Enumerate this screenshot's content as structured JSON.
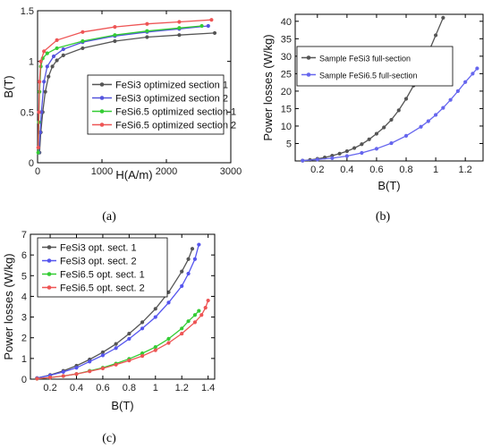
{
  "captions": [
    "(a)",
    "(b)",
    "(c)"
  ],
  "chart_data": [
    {
      "type": "line",
      "xlabel": "H(A/m)",
      "ylabel": "B(T)",
      "xlim": [
        0,
        3000
      ],
      "ylim": [
        0,
        1.5
      ],
      "xticks": [
        0,
        1000,
        2000,
        3000
      ],
      "xtick_labels": [
        "0",
        "1000",
        "2000",
        "3000"
      ],
      "yticks": [
        0,
        0.5,
        1,
        1.5
      ],
      "ytick_labels": [
        "0",
        "0.5",
        "1",
        "1.5"
      ],
      "legend": "inside-right",
      "series": [
        {
          "name": "FeSi3 optimized section 1",
          "color": "#555555",
          "x": [
            30,
            50,
            80,
            120,
            170,
            230,
            300,
            400,
            700,
            1200,
            1700,
            2200,
            2750
          ],
          "y": [
            0.1,
            0.3,
            0.5,
            0.7,
            0.85,
            0.95,
            1.01,
            1.06,
            1.13,
            1.2,
            1.24,
            1.26,
            1.28
          ]
        },
        {
          "name": "FeSi3 optimized section 2",
          "color": "#5555dd",
          "x": [
            20,
            40,
            60,
            100,
            150,
            250,
            400,
            700,
            1200,
            1700,
            2200,
            2650
          ],
          "y": [
            0.1,
            0.3,
            0.5,
            0.8,
            0.95,
            1.05,
            1.12,
            1.19,
            1.25,
            1.29,
            1.32,
            1.35
          ]
        },
        {
          "name": "FeSi6.5 optimized section 1",
          "color": "#33cc33",
          "x": [
            10,
            20,
            30,
            50,
            80,
            150,
            300,
            700,
            1200,
            1700,
            2200,
            2550
          ],
          "y": [
            0.1,
            0.4,
            0.7,
            0.95,
            1.03,
            1.08,
            1.13,
            1.2,
            1.26,
            1.3,
            1.33,
            1.35
          ]
        },
        {
          "name": "FeSi6.5 optimized section 2",
          "color": "#ee5555",
          "x": [
            10,
            20,
            30,
            50,
            100,
            300,
            700,
            1200,
            1700,
            2200,
            2700
          ],
          "y": [
            0.15,
            0.5,
            0.8,
            1.0,
            1.1,
            1.21,
            1.29,
            1.34,
            1.37,
            1.39,
            1.41
          ]
        }
      ]
    },
    {
      "type": "line",
      "xlabel": "B(T)",
      "ylabel": "Power losses (W/kg)",
      "xlim": [
        0.05,
        1.32
      ],
      "ylim": [
        0,
        42
      ],
      "xticks": [
        0.2,
        0.4,
        0.6,
        0.8,
        1,
        1.2
      ],
      "xtick_labels": [
        "0.2",
        "0.4",
        "0.6",
        "0.8",
        "1",
        "1.2"
      ],
      "yticks": [
        5,
        10,
        15,
        20,
        25,
        30,
        35,
        40
      ],
      "ytick_labels": [
        "5",
        "10",
        "15",
        "20",
        "25",
        "30",
        "35",
        "40"
      ],
      "legend": "top-right",
      "series": [
        {
          "name": "Sample FeSi3 full-section",
          "color": "#555555",
          "x": [
            0.1,
            0.15,
            0.2,
            0.25,
            0.3,
            0.35,
            0.4,
            0.45,
            0.5,
            0.55,
            0.6,
            0.65,
            0.7,
            0.75,
            0.8,
            0.85,
            0.9,
            0.95,
            1.0,
            1.05
          ],
          "y": [
            0.1,
            0.3,
            0.6,
            1.0,
            1.5,
            2.1,
            2.8,
            3.7,
            4.8,
            6.2,
            7.8,
            9.6,
            11.8,
            14.5,
            17.8,
            21.6,
            26,
            31,
            36,
            41
          ]
        },
        {
          "name": "Sample FeSi6.5 full-section",
          "color": "#6666ee",
          "x": [
            0.1,
            0.2,
            0.3,
            0.4,
            0.5,
            0.6,
            0.7,
            0.8,
            0.9,
            0.95,
            1.0,
            1.05,
            1.1,
            1.15,
            1.2,
            1.25,
            1.28
          ],
          "y": [
            0.1,
            0.4,
            0.8,
            1.4,
            2.3,
            3.5,
            5.1,
            7.2,
            9.8,
            11.4,
            13.2,
            15.2,
            17.5,
            20,
            22.6,
            25,
            26.5
          ]
        }
      ]
    },
    {
      "type": "line",
      "xlabel": "B(T)",
      "ylabel": "Power losses (W/kg)",
      "xlim": [
        0.05,
        1.45
      ],
      "ylim": [
        0,
        7
      ],
      "xticks": [
        0.2,
        0.4,
        0.6,
        0.8,
        1,
        1.2,
        1.4
      ],
      "xtick_labels": [
        "0.2",
        "0.4",
        "0.6",
        "0.8",
        "1",
        "1.2",
        "1.4"
      ],
      "yticks": [
        0,
        1,
        2,
        3,
        4,
        5,
        6,
        7
      ],
      "ytick_labels": [
        "0",
        "1",
        "2",
        "3",
        "4",
        "5",
        "6",
        "7"
      ],
      "legend": "top-left",
      "series": [
        {
          "name": "FeSi3 opt. sect. 1",
          "color": "#555555",
          "x": [
            0.1,
            0.2,
            0.3,
            0.4,
            0.5,
            0.6,
            0.7,
            0.8,
            0.9,
            1.0,
            1.1,
            1.2,
            1.25,
            1.28
          ],
          "y": [
            0.05,
            0.2,
            0.4,
            0.65,
            0.95,
            1.3,
            1.7,
            2.2,
            2.75,
            3.4,
            4.2,
            5.2,
            5.8,
            6.3
          ]
        },
        {
          "name": "FeSi3 opt. sect. 2",
          "color": "#5555ee",
          "x": [
            0.1,
            0.2,
            0.3,
            0.4,
            0.5,
            0.6,
            0.7,
            0.8,
            0.9,
            1.0,
            1.1,
            1.2,
            1.25,
            1.3,
            1.33
          ],
          "y": [
            0.05,
            0.18,
            0.35,
            0.55,
            0.85,
            1.15,
            1.5,
            1.95,
            2.45,
            3.0,
            3.7,
            4.5,
            5.1,
            5.8,
            6.5
          ]
        },
        {
          "name": "FeSi6.5 opt. sect. 1",
          "color": "#33cc33",
          "x": [
            0.1,
            0.2,
            0.3,
            0.4,
            0.5,
            0.6,
            0.7,
            0.8,
            0.9,
            1.0,
            1.1,
            1.2,
            1.25,
            1.3,
            1.33
          ],
          "y": [
            0.02,
            0.08,
            0.15,
            0.25,
            0.4,
            0.55,
            0.75,
            0.98,
            1.25,
            1.55,
            1.95,
            2.45,
            2.8,
            3.1,
            3.3
          ]
        },
        {
          "name": "FeSi6.5 opt. sect. 2",
          "color": "#ee5555",
          "x": [
            0.1,
            0.2,
            0.3,
            0.4,
            0.5,
            0.6,
            0.7,
            0.8,
            0.9,
            1.0,
            1.1,
            1.2,
            1.3,
            1.35,
            1.38,
            1.4
          ],
          "y": [
            0.02,
            0.08,
            0.15,
            0.25,
            0.38,
            0.52,
            0.7,
            0.9,
            1.12,
            1.4,
            1.75,
            2.2,
            2.75,
            3.1,
            3.45,
            3.8
          ]
        }
      ]
    }
  ]
}
